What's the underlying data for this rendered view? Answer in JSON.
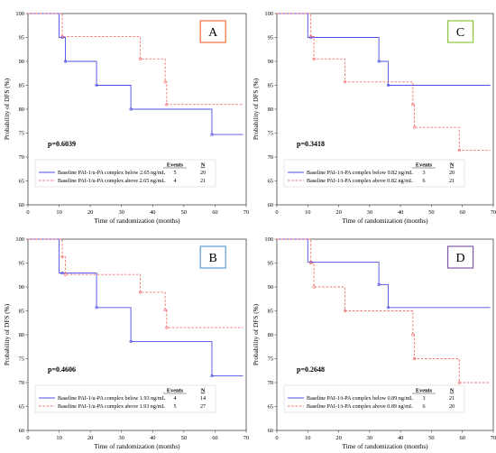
{
  "colors": {
    "blue": "#4f4fe6",
    "red": "#f26f6f",
    "frame": "#444444",
    "dot": "#000000"
  },
  "chart_data": [
    {
      "type": "line",
      "label": "A",
      "label_color": "#f06d3c",
      "xlabel": "Time of randomization (months)",
      "ylabel": "Probability of DFS (%)",
      "xlim": [
        0,
        70
      ],
      "ylim": [
        60,
        100
      ],
      "xticks": [
        "0",
        "10",
        "20",
        "30",
        "40",
        "50",
        "60",
        "70"
      ],
      "yticks": [
        "60",
        "65",
        "70",
        "75",
        "80",
        "85",
        "90",
        "95",
        "100"
      ],
      "pvalue": "p=0.6039",
      "legend_header": {
        "events": "Events",
        "n": "N"
      },
      "series": [
        {
          "name": "Baseline PAI-1/u-PA complex below 2.65 ng/mL",
          "events": "5",
          "n": "20",
          "style": "solid",
          "color": "blue",
          "steps": [
            [
              0,
              100
            ],
            [
              10,
              100
            ],
            [
              10,
              95
            ],
            [
              12,
              95
            ],
            [
              12,
              90
            ],
            [
              22,
              90
            ],
            [
              22,
              85
            ],
            [
              33,
              85
            ],
            [
              33,
              80
            ],
            [
              59,
              80
            ],
            [
              59,
              74.7
            ],
            [
              69,
              74.7
            ]
          ],
          "censors": [
            [
              11,
              95
            ],
            [
              12,
              90
            ],
            [
              22,
              85
            ],
            [
              33,
              80
            ],
            [
              59,
              74.7
            ]
          ]
        },
        {
          "name": "Baseline PAI-1/u-PA complex above 2.65 ng/mL",
          "events": "4",
          "n": "21",
          "style": "dashed",
          "color": "red",
          "steps": [
            [
              0,
              100
            ],
            [
              11,
              100
            ],
            [
              11,
              95.2
            ],
            [
              36,
              95.2
            ],
            [
              36,
              90.5
            ],
            [
              44,
              90.5
            ],
            [
              44,
              85.7
            ],
            [
              44.5,
              85.7
            ],
            [
              44.5,
              81
            ],
            [
              69,
              81
            ]
          ],
          "censors": [
            [
              11,
              95.2
            ],
            [
              36,
              90.5
            ],
            [
              44,
              85.7
            ],
            [
              44.5,
              81
            ]
          ]
        }
      ]
    },
    {
      "type": "line",
      "label": "C",
      "label_color": "#8cc63f",
      "xlabel": "Time of randomization (months)",
      "ylabel": "Probability of DFS (%)",
      "xlim": [
        0,
        70
      ],
      "ylim": [
        60,
        100
      ],
      "xticks": [
        "0",
        "10",
        "20",
        "30",
        "40",
        "50",
        "60",
        "70"
      ],
      "yticks": [
        "60",
        "65",
        "70",
        "75",
        "80",
        "85",
        "90",
        "95",
        "100"
      ],
      "pvalue": "p=0.3418",
      "legend_header": {
        "events": "Events",
        "n": "N"
      },
      "series": [
        {
          "name": "Baseline PAI-1/t-PA complex below 0.82 ng/mL",
          "events": "3",
          "n": "20",
          "style": "solid",
          "color": "blue",
          "steps": [
            [
              0,
              100
            ],
            [
              10,
              100
            ],
            [
              10,
              95
            ],
            [
              33,
              95
            ],
            [
              33,
              90
            ],
            [
              36,
              90
            ],
            [
              36,
              85
            ],
            [
              69,
              85
            ]
          ],
          "censors": [
            [
              11,
              95
            ],
            [
              33,
              90
            ],
            [
              36,
              85
            ]
          ]
        },
        {
          "name": "Baseline PAI-1/t-PA complex above 0.82 ng/mL",
          "events": "6",
          "n": "21",
          "style": "dashed",
          "color": "red",
          "steps": [
            [
              0,
              100
            ],
            [
              11,
              100
            ],
            [
              11,
              95.2
            ],
            [
              12,
              95.2
            ],
            [
              12,
              90.5
            ],
            [
              22,
              90.5
            ],
            [
              22,
              85.7
            ],
            [
              44,
              85.7
            ],
            [
              44,
              81
            ],
            [
              44.5,
              81
            ],
            [
              44.5,
              76.2
            ],
            [
              59,
              76.2
            ],
            [
              59,
              71.4
            ],
            [
              69,
              71.4
            ]
          ],
          "censors": [
            [
              11,
              95.2
            ],
            [
              12,
              90.5
            ],
            [
              22,
              85.7
            ],
            [
              44,
              81
            ],
            [
              44.5,
              76.2
            ],
            [
              59,
              71.4
            ]
          ]
        }
      ]
    },
    {
      "type": "line",
      "label": "B",
      "label_color": "#5b9bd5",
      "xlabel": "Time of randomization (months)",
      "ylabel": "Probability of DFS (%)",
      "xlim": [
        0,
        70
      ],
      "ylim": [
        60,
        100
      ],
      "xticks": [
        "0",
        "10",
        "20",
        "30",
        "40",
        "50",
        "60",
        "70"
      ],
      "yticks": [
        "60",
        "65",
        "70",
        "75",
        "80",
        "85",
        "90",
        "95",
        "100"
      ],
      "pvalue": "p=0.4606",
      "legend_header": {
        "events": "Events",
        "n": "N"
      },
      "series": [
        {
          "name": "Baseline PAI-1/u-PA complex below 1.93 ng/mL",
          "events": "4",
          "n": "14",
          "style": "solid",
          "color": "blue",
          "steps": [
            [
              0,
              100
            ],
            [
              10,
              100
            ],
            [
              10,
              92.9
            ],
            [
              22,
              92.9
            ],
            [
              22,
              85.7
            ],
            [
              33,
              85.7
            ],
            [
              33,
              78.6
            ],
            [
              59,
              78.6
            ],
            [
              59,
              71.4
            ],
            [
              69,
              71.4
            ]
          ],
          "censors": [
            [
              11,
              92.9
            ],
            [
              22,
              85.7
            ],
            [
              33,
              78.6
            ],
            [
              59,
              71.4
            ]
          ]
        },
        {
          "name": "Baseline PAI-1/u-PA complex above 1.93 ng/mL",
          "events": "5",
          "n": "27",
          "style": "dashed",
          "color": "red",
          "steps": [
            [
              0,
              100
            ],
            [
              11,
              100
            ],
            [
              11,
              96.3
            ],
            [
              12,
              96.3
            ],
            [
              12,
              92.6
            ],
            [
              36,
              92.6
            ],
            [
              36,
              88.9
            ],
            [
              44,
              88.9
            ],
            [
              44,
              85.2
            ],
            [
              44.5,
              85.2
            ],
            [
              44.5,
              81.5
            ],
            [
              69,
              81.5
            ]
          ],
          "censors": [
            [
              11,
              96.3
            ],
            [
              12,
              92.6
            ],
            [
              36,
              88.9
            ],
            [
              44,
              85.2
            ],
            [
              44.5,
              81.5
            ]
          ]
        }
      ]
    },
    {
      "type": "line",
      "label": "D",
      "label_color": "#7f5aa6",
      "xlabel": "Time of randomization (months)",
      "ylabel": "Probability of DFS (%)",
      "xlim": [
        0,
        70
      ],
      "ylim": [
        60,
        100
      ],
      "xticks": [
        "0",
        "10",
        "20",
        "30",
        "40",
        "50",
        "60",
        "70"
      ],
      "yticks": [
        "60",
        "65",
        "70",
        "75",
        "80",
        "85",
        "90",
        "95",
        "100"
      ],
      "pvalue": "p=0.2648",
      "legend_header": {
        "events": "Events",
        "n": "N"
      },
      "series": [
        {
          "name": "Baseline PAI-1/t-PA complex below 0.89 ng/mL",
          "events": "3",
          "n": "21",
          "style": "solid",
          "color": "blue",
          "steps": [
            [
              0,
              100
            ],
            [
              10,
              100
            ],
            [
              10,
              95.2
            ],
            [
              33,
              95.2
            ],
            [
              33,
              90.5
            ],
            [
              36,
              90.5
            ],
            [
              36,
              85.7
            ],
            [
              69,
              85.7
            ]
          ],
          "censors": [
            [
              11,
              95.2
            ],
            [
              33,
              90.5
            ],
            [
              36,
              85.7
            ]
          ]
        },
        {
          "name": "Baseline PAI-1/t-PA complex above 0.89 ng/mL",
          "events": "6",
          "n": "20",
          "style": "dashed",
          "color": "red",
          "steps": [
            [
              0,
              100
            ],
            [
              11,
              100
            ],
            [
              11,
              95
            ],
            [
              12,
              95
            ],
            [
              12,
              90
            ],
            [
              22,
              90
            ],
            [
              22,
              85
            ],
            [
              44,
              85
            ],
            [
              44,
              80
            ],
            [
              44.5,
              80
            ],
            [
              44.5,
              75
            ],
            [
              59,
              75
            ],
            [
              59,
              70
            ],
            [
              69,
              70
            ]
          ],
          "censors": [
            [
              11,
              95
            ],
            [
              12,
              90
            ],
            [
              22,
              85
            ],
            [
              44,
              80
            ],
            [
              44.5,
              75
            ],
            [
              59,
              70
            ]
          ]
        }
      ]
    }
  ]
}
